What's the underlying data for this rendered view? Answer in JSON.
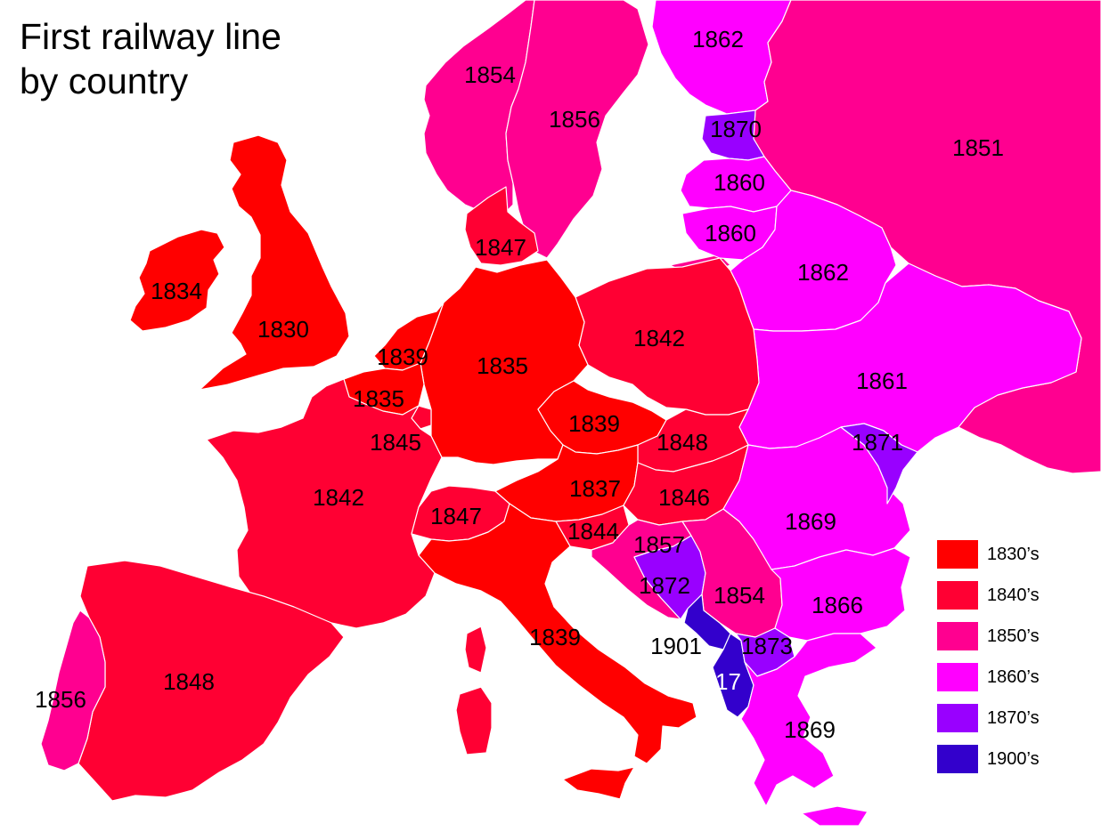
{
  "title": {
    "line1": "First railway line",
    "line2": "by country"
  },
  "colors": {
    "1830s": "#ff0000",
    "1840s": "#ff0033",
    "1850s": "#ff0090",
    "1860s": "#ff00ff",
    "1870s": "#9900ff",
    "1900s": "#3300cc",
    "ocean": "#ffffff",
    "border": "#ffffff"
  },
  "legend": [
    {
      "label": "1830’s",
      "decade": "1830s"
    },
    {
      "label": "1840’s",
      "decade": "1840s"
    },
    {
      "label": "1850’s",
      "decade": "1850s"
    },
    {
      "label": "1860’s",
      "decade": "1860s"
    },
    {
      "label": "1870’s",
      "decade": "1870s"
    },
    {
      "label": "1900’s",
      "decade": "1900s"
    }
  ],
  "countries": [
    {
      "name": "Great Britain",
      "year": "1830",
      "decade": "1830s"
    },
    {
      "name": "Ireland",
      "year": "1834",
      "decade": "1830s"
    },
    {
      "name": "Germany",
      "year": "1835",
      "decade": "1830s"
    },
    {
      "name": "Belgium",
      "year": "1835",
      "decade": "1830s"
    },
    {
      "name": "Netherlands",
      "year": "1839",
      "decade": "1830s"
    },
    {
      "name": "Czechia",
      "year": "1839",
      "decade": "1830s"
    },
    {
      "name": "Italy",
      "year": "1839",
      "decade": "1830s"
    },
    {
      "name": "Austria",
      "year": "1837",
      "decade": "1830s"
    },
    {
      "name": "Sicily",
      "year": "",
      "decade": "1830s"
    },
    {
      "name": "Sardinia",
      "year": "",
      "decade": "1840s"
    },
    {
      "name": "Corsica",
      "year": "",
      "decade": "1840s"
    },
    {
      "name": "France",
      "year": "1842",
      "decade": "1840s"
    },
    {
      "name": "Luxembourg",
      "year": "1845",
      "decade": "1840s"
    },
    {
      "name": "Switzerland",
      "year": "1847",
      "decade": "1840s"
    },
    {
      "name": "Denmark",
      "year": "1847",
      "decade": "1840s"
    },
    {
      "name": "Poland",
      "year": "1842",
      "decade": "1840s"
    },
    {
      "name": "Slovakia",
      "year": "1848",
      "decade": "1840s"
    },
    {
      "name": "Hungary",
      "year": "1846",
      "decade": "1840s"
    },
    {
      "name": "Slovenia",
      "year": "1844",
      "decade": "1840s"
    },
    {
      "name": "Spain",
      "year": "1848",
      "decade": "1840s"
    },
    {
      "name": "Portugal",
      "year": "1856",
      "decade": "1850s"
    },
    {
      "name": "Norway",
      "year": "1854",
      "decade": "1850s"
    },
    {
      "name": "Sweden",
      "year": "1856",
      "decade": "1850s"
    },
    {
      "name": "Russia",
      "year": "1851",
      "decade": "1850s"
    },
    {
      "name": "Croatia",
      "year": "1857",
      "decade": "1850s"
    },
    {
      "name": "Serbia",
      "year": "1854",
      "decade": "1850s"
    },
    {
      "name": "Finland",
      "year": "1862",
      "decade": "1860s"
    },
    {
      "name": "Latvia",
      "year": "1860",
      "decade": "1860s"
    },
    {
      "name": "Lithuania",
      "year": "1860",
      "decade": "1860s"
    },
    {
      "name": "Belarus",
      "year": "1862",
      "decade": "1860s"
    },
    {
      "name": "Ukraine",
      "year": "1861",
      "decade": "1860s"
    },
    {
      "name": "Romania",
      "year": "1869",
      "decade": "1860s"
    },
    {
      "name": "Bulgaria",
      "year": "1866",
      "decade": "1860s"
    },
    {
      "name": "Greece",
      "year": "1869",
      "decade": "1860s"
    },
    {
      "name": "Estonia",
      "year": "1870",
      "decade": "1870s"
    },
    {
      "name": "Moldova",
      "year": "1871",
      "decade": "1870s"
    },
    {
      "name": "Bosnia",
      "year": "1872",
      "decade": "1870s"
    },
    {
      "name": "North Macedonia",
      "year": "1873",
      "decade": "1870s"
    },
    {
      "name": "Montenegro",
      "year": "1901",
      "decade": "1900s"
    },
    {
      "name": "Albania",
      "year": "1917",
      "decade": "1900s"
    }
  ]
}
